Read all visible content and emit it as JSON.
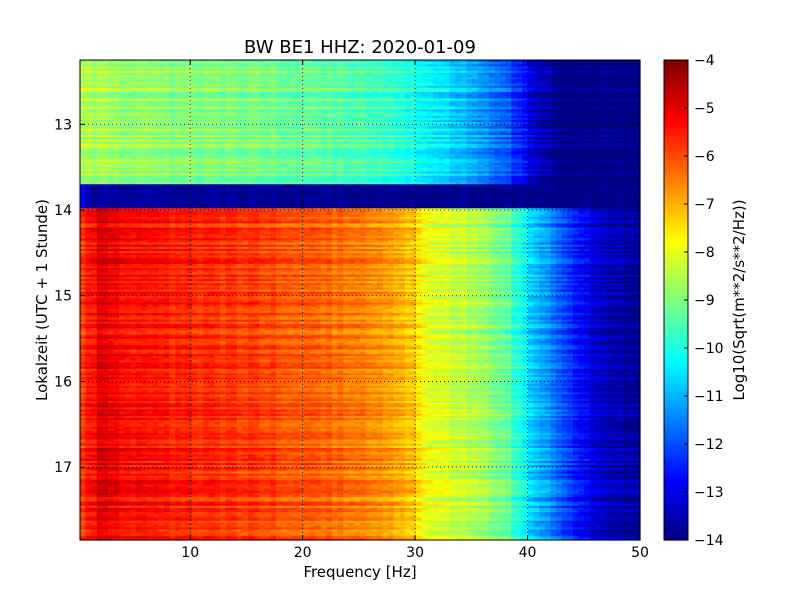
{
  "chart_data": {
    "type": "heatmap",
    "title": "BW BE1 HHZ: 2020-01-09",
    "xlabel": "Frequency [Hz]",
    "ylabel": "Lokalzeit (UTC + 1 Stunde)",
    "xlim": [
      0.2,
      50
    ],
    "ylim": [
      12.25,
      17.85
    ],
    "y_inverted": true,
    "x_ticks": [
      10,
      20,
      30,
      40,
      50
    ],
    "x_tick_labels": [
      "10",
      "20",
      "30",
      "40",
      "50"
    ],
    "y_ticks": [
      13,
      14,
      15,
      16,
      17
    ],
    "y_tick_labels": [
      "13",
      "14",
      "15",
      "16",
      "17"
    ],
    "grid": true,
    "colorbar": {
      "label": "Log10(Sqrt(m**2/s**2/Hz))",
      "range": [
        -14,
        -4
      ],
      "ticks": [
        -4,
        -5,
        -6,
        -7,
        -8,
        -9,
        -10,
        -11,
        -12,
        -13,
        -14
      ],
      "tick_labels": [
        "−4",
        "−5",
        "−6",
        "−7",
        "−8",
        "−9",
        "−10",
        "−11",
        "−12",
        "−13",
        "−14"
      ],
      "colormap": "jet"
    },
    "segments": [
      {
        "name": "",
        "t_start": 12.25,
        "t_end": 13.7,
        "profile_freq": [
          0.2,
          5,
          10,
          15,
          20,
          25,
          28,
          30,
          33,
          36,
          38,
          40,
          41,
          43,
          45,
          50
        ],
        "profile_val": [
          -8.5,
          -8.8,
          -8.9,
          -9.0,
          -9.2,
          -9.4,
          -9.7,
          -10.0,
          -10.6,
          -11.2,
          -11.8,
          -12.8,
          -13.4,
          -13.9,
          -14.0,
          -14.0
        ]
      },
      {
        "name": "",
        "t_start": 13.7,
        "t_end": 13.98,
        "profile_freq": [
          0.2,
          1,
          50
        ],
        "profile_val": [
          -12.5,
          -13.7,
          -13.9
        ]
      },
      {
        "name": "",
        "t_start": 13.98,
        "t_end": 17.85,
        "profile_freq": [
          0.2,
          2,
          5,
          10,
          15,
          20,
          25,
          28,
          30,
          31,
          33,
          36,
          38,
          40,
          41,
          43,
          45,
          47,
          50
        ],
        "profile_val": [
          -5.9,
          -5.0,
          -5.4,
          -5.6,
          -5.8,
          -6.1,
          -6.4,
          -6.8,
          -7.2,
          -7.9,
          -8.2,
          -8.6,
          -9.2,
          -10.4,
          -11.0,
          -11.8,
          -12.8,
          -13.5,
          -13.7
        ]
      }
    ]
  }
}
